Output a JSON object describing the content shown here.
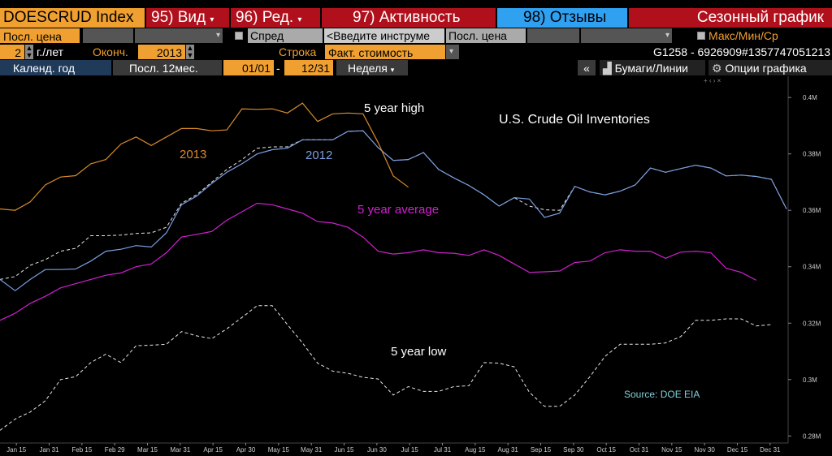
{
  "toolbar": {
    "ticker": "DOESCRUD Index",
    "btn_view": "95) Вид",
    "btn_edit": "96) Ред.",
    "btn_activity": "97) Активность",
    "btn_feedback": "98) Отзывы",
    "title": "Сезонный график"
  },
  "row2": {
    "field1": "Посл. цена",
    "spread_label": "Спред",
    "instrument_placeholder": "<Введите инструме",
    "field2": "Посл. цена",
    "maxminavg_label": "Макс/Мин/Ср"
  },
  "row3": {
    "years_value": "2",
    "years_label": "г./лет",
    "end_label": "Оконч.",
    "end_value": "2013",
    "row_label": "Строка",
    "row_value": "Факт. стоимость",
    "security_id": "G1258 - 6926909#1357747051213"
  },
  "row4": {
    "calendar_year": "Календ. год",
    "last12": "Посл. 12мес.",
    "from_date": "01/01",
    "dash": "-",
    "to_date": "12/31",
    "period": "Неделя",
    "collapse": "«",
    "securities_lines": "Бумаги/Линии",
    "chart_options": "Опции графика"
  },
  "colors": {
    "orange": "#d98a2b",
    "blue": "#7a9fe0",
    "magenta": "#d020d0",
    "white_dashed": "#e8e8e8",
    "source": "#7fd0d8"
  },
  "chart_data": {
    "type": "line",
    "title": "U.S. Crude Oil Inventories",
    "source": "Source: DOE EIA",
    "x_ticks": [
      "Jan 15",
      "Jan 31",
      "Feb 15",
      "Feb 29",
      "Mar 15",
      "Mar 31",
      "Apr 15",
      "Apr 30",
      "May 15",
      "May 31",
      "Jun 15",
      "Jun 30",
      "Jul 15",
      "Jul 31",
      "Aug 15",
      "Aug 31",
      "Sep 15",
      "Sep 30",
      "Oct 15",
      "Oct 31",
      "Nov 15",
      "Nov 30",
      "Dec 15",
      "Dec 31"
    ],
    "y_ticks": [
      "0.4M",
      "0.38M",
      "0.36M",
      "0.34M",
      "0.32M",
      "0.3M",
      "0.28M"
    ],
    "ylim": [
      0.2775,
      0.4035
    ],
    "xlim": [
      0,
      52
    ],
    "labels": {
      "high": "5 year high",
      "avg": "5 year average",
      "low": "5 year low",
      "y2013": "2013",
      "y2012": "2012"
    },
    "series": [
      {
        "name": "2013",
        "color": "#d98a2b",
        "dash": false,
        "values": [
          0.3605,
          0.36,
          0.363,
          0.369,
          0.3718,
          0.3723,
          0.3765,
          0.378,
          0.3835,
          0.386,
          0.383,
          0.386,
          0.389,
          0.389,
          0.3882,
          0.3885,
          0.396,
          0.3958,
          0.396,
          0.3945,
          0.398,
          0.3915,
          0.3942,
          0.3945,
          0.3942,
          0.384,
          0.3722,
          0.3682
        ]
      },
      {
        "name": "2012",
        "color": "#7a9fe0",
        "dash": false,
        "values": [
          0.3355,
          0.3315,
          0.3355,
          0.339,
          0.339,
          0.3392,
          0.342,
          0.3455,
          0.3462,
          0.3475,
          0.347,
          0.352,
          0.362,
          0.365,
          0.3695,
          0.3735,
          0.3765,
          0.38,
          0.3815,
          0.382,
          0.385,
          0.385,
          0.385,
          0.388,
          0.3882,
          0.3822,
          0.3777,
          0.378,
          0.3805,
          0.3745,
          0.3715,
          0.3688,
          0.3655,
          0.3615,
          0.3645,
          0.364,
          0.3575,
          0.359,
          0.3685,
          0.3665,
          0.3655,
          0.3668,
          0.369,
          0.375,
          0.3735,
          0.3748,
          0.376,
          0.375,
          0.3722,
          0.3725,
          0.372,
          0.371,
          0.3605
        ]
      },
      {
        "name": "5 year high",
        "color": "#e8e8e8",
        "dash": true,
        "values": [
          0.3355,
          0.3365,
          0.3405,
          0.3425,
          0.3455,
          0.3465,
          0.351,
          0.351,
          0.3512,
          0.3518,
          0.352,
          0.354,
          0.3625,
          0.3655,
          0.37,
          0.3745,
          0.378,
          0.382,
          0.3825,
          0.3825,
          0.385,
          0.385,
          0.385,
          0.388,
          0.3882,
          0.3822,
          0.3777,
          0.378,
          0.3805,
          0.3745,
          0.3715,
          0.3688,
          0.3655,
          0.3615,
          0.3645,
          0.3615,
          0.3602,
          0.36,
          0.3685,
          0.3665,
          0.3655,
          0.3668,
          0.369,
          0.375,
          0.3735,
          0.3748,
          0.376,
          0.375,
          0.3722,
          0.3725,
          0.372,
          0.371,
          0.3605
        ]
      },
      {
        "name": "5 year average",
        "color": "#d020d0",
        "dash": false,
        "values": [
          0.321,
          0.3235,
          0.327,
          0.3295,
          0.3325,
          0.334,
          0.3355,
          0.337,
          0.3378,
          0.34,
          0.341,
          0.345,
          0.3505,
          0.3515,
          0.3525,
          0.3565,
          0.3595,
          0.3625,
          0.362,
          0.3605,
          0.359,
          0.356,
          0.3555,
          0.354,
          0.3505,
          0.3455,
          0.3445,
          0.345,
          0.346,
          0.345,
          0.3448,
          0.344,
          0.346,
          0.344,
          0.341,
          0.338,
          0.3382,
          0.3385,
          0.3415,
          0.342,
          0.345,
          0.346,
          0.3455,
          0.3455,
          0.343,
          0.3452,
          0.3455,
          0.345,
          0.3395,
          0.338,
          0.3352
        ]
      },
      {
        "name": "5 year low",
        "color": "#e8e8e8",
        "dash": true,
        "values": [
          0.282,
          0.286,
          0.2885,
          0.2925,
          0.3,
          0.301,
          0.306,
          0.309,
          0.306,
          0.312,
          0.3122,
          0.3125,
          0.317,
          0.3155,
          0.3145,
          0.318,
          0.322,
          0.3262,
          0.3262,
          0.3195,
          0.313,
          0.3058,
          0.303,
          0.3022,
          0.3008,
          0.3002,
          0.2945,
          0.2975,
          0.2958,
          0.2958,
          0.2975,
          0.2978,
          0.306,
          0.3058,
          0.3045,
          0.2955,
          0.2905,
          0.2905,
          0.2945,
          0.301,
          0.3082,
          0.3125,
          0.3125,
          0.3125,
          0.313,
          0.3152,
          0.321,
          0.321,
          0.3215,
          0.3215,
          0.319,
          0.3195
        ]
      }
    ]
  }
}
